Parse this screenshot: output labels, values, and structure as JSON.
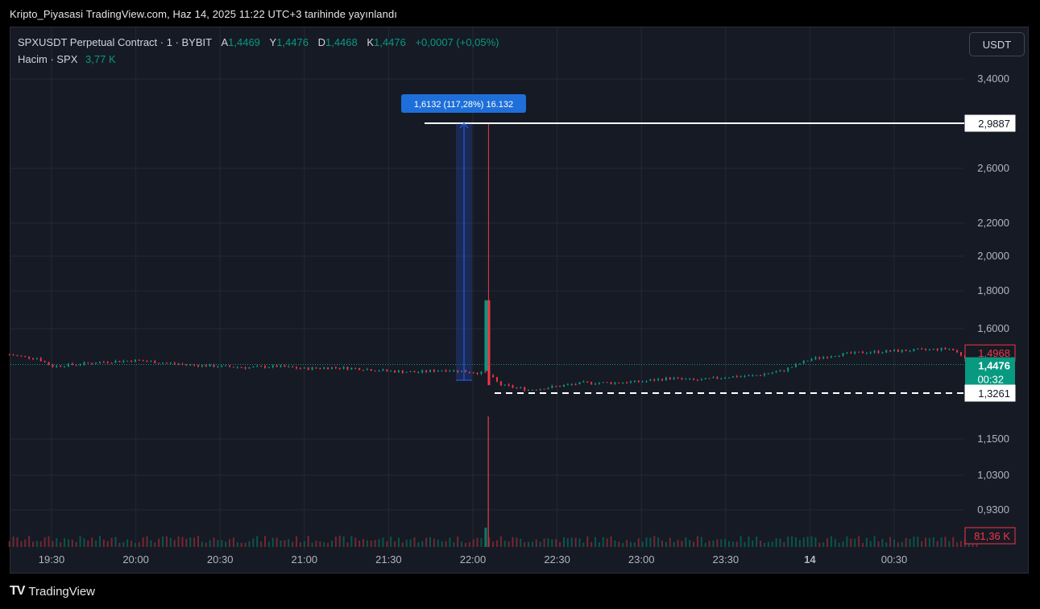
{
  "header": {
    "published": "Kripto_Piyasasi TradingView.com, Haz 14, 2025 11:22 UTC+3 tarihinde yayınlandı"
  },
  "legend": {
    "symbol": "SPXUSDT Perpetual Contract · 1 · BYBIT",
    "open_label": "A",
    "open": "1,4469",
    "high_label": "Y",
    "high": "1,4476",
    "low_label": "D",
    "low": "1,4468",
    "close_label": "K",
    "close": "1,4476",
    "change": "+0,0007 (+0,05%)",
    "volume_label": "Hacim · SPX",
    "volume": "3,77 K"
  },
  "currency_button": "USDT",
  "brand": {
    "name": "TradingView",
    "logo": "TV"
  },
  "colors": {
    "up": "#089981",
    "down": "#f23645",
    "accent": "#2962ff",
    "bg": "#161a25"
  },
  "chart_data": {
    "type": "candlestick",
    "symbol": "SPXUSDT",
    "timeframe": "1",
    "x_axis_ticks": [
      "19:30",
      "20:00",
      "20:30",
      "21:00",
      "21:30",
      "22:00",
      "22:30",
      "23:00",
      "23:30",
      "14",
      "00:30"
    ],
    "y_axis_ticks": [
      "3,4000",
      "2,6000",
      "2,2000",
      "2,0000",
      "1,8000",
      "1,6000",
      "1,1500",
      "1,0300",
      "0,9300"
    ],
    "price_labels": {
      "drawn_high": "2,9887",
      "last_price": "1,4476",
      "countdown": "00:32",
      "upper_level": "1,4968",
      "drawn_low": "1,3261",
      "volume_last": "81,36 K"
    },
    "measure_label": "1,6132 (117,28%) 16.132",
    "wick_spike": {
      "time": "22:05",
      "high": 2.9887,
      "body_top": 1.75
    },
    "price_series": [
      {
        "t": "19:15",
        "p": 1.49
      },
      {
        "t": "19:20",
        "p": 1.48
      },
      {
        "t": "19:25",
        "p": 1.475
      },
      {
        "t": "19:30",
        "p": 1.44
      },
      {
        "t": "19:40",
        "p": 1.45
      },
      {
        "t": "19:50",
        "p": 1.46
      },
      {
        "t": "20:00",
        "p": 1.465
      },
      {
        "t": "20:10",
        "p": 1.455
      },
      {
        "t": "20:20",
        "p": 1.445
      },
      {
        "t": "20:30",
        "p": 1.44
      },
      {
        "t": "20:40",
        "p": 1.435
      },
      {
        "t": "20:50",
        "p": 1.44
      },
      {
        "t": "21:00",
        "p": 1.43
      },
      {
        "t": "21:10",
        "p": 1.435
      },
      {
        "t": "21:20",
        "p": 1.43
      },
      {
        "t": "21:30",
        "p": 1.42
      },
      {
        "t": "21:40",
        "p": 1.415
      },
      {
        "t": "21:50",
        "p": 1.425
      },
      {
        "t": "22:00",
        "p": 1.415
      },
      {
        "t": "22:05",
        "p": 1.41
      },
      {
        "t": "22:10",
        "p": 1.36
      },
      {
        "t": "22:20",
        "p": 1.34
      },
      {
        "t": "22:30",
        "p": 1.355
      },
      {
        "t": "22:40",
        "p": 1.37
      },
      {
        "t": "22:50",
        "p": 1.37
      },
      {
        "t": "23:00",
        "p": 1.375
      },
      {
        "t": "23:10",
        "p": 1.39
      },
      {
        "t": "23:20",
        "p": 1.38
      },
      {
        "t": "23:30",
        "p": 1.395
      },
      {
        "t": "23:40",
        "p": 1.4
      },
      {
        "t": "23:50",
        "p": 1.42
      },
      {
        "t": "00:00",
        "p": 1.47
      },
      {
        "t": "00:10",
        "p": 1.49
      },
      {
        "t": "00:20",
        "p": 1.5
      },
      {
        "t": "00:30",
        "p": 1.505
      },
      {
        "t": "00:40",
        "p": 1.51
      },
      {
        "t": "00:50",
        "p": 1.515
      },
      {
        "t": "01:00",
        "p": 1.4476
      }
    ]
  }
}
